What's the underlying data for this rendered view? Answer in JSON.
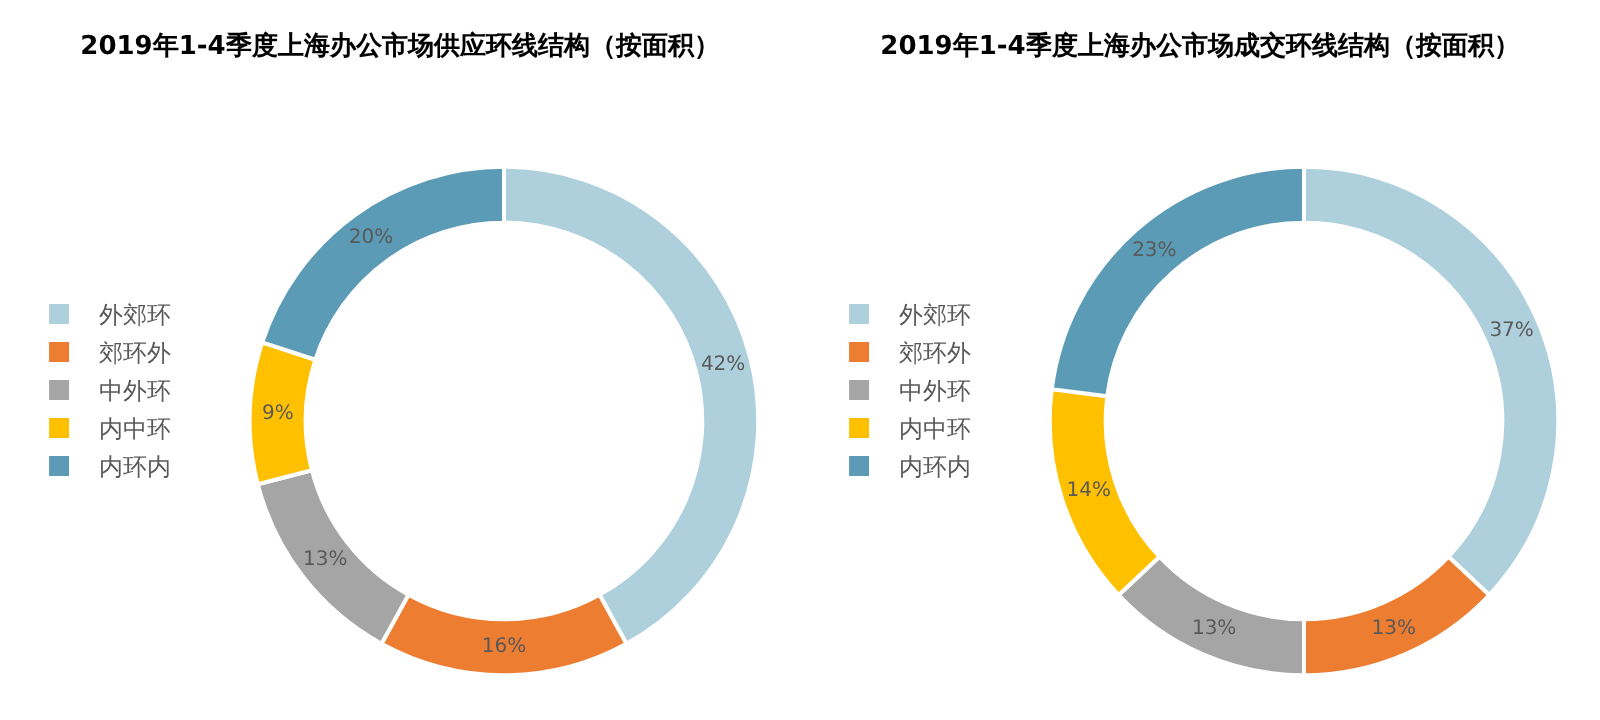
{
  "chart_data": [
    {
      "type": "donut",
      "title": "2019年1-4季度上海办公市场供应环线结构（按面积）",
      "categories": [
        "外郊环",
        "郊环外",
        "中外环",
        "内中环",
        "内环内"
      ],
      "values": [
        42,
        16,
        13,
        9,
        20
      ],
      "value_labels": [
        "42%",
        "16%",
        "13%",
        "9%",
        "20%"
      ],
      "colors": [
        "#aecfdc",
        "#ed7d31",
        "#a5a5a5",
        "#ffc000",
        "#5b9bb5"
      ],
      "legend": "left"
    },
    {
      "type": "donut",
      "title": "2019年1-4季度上海办公市场成交环线结构（按面积）",
      "categories": [
        "外郊环",
        "郊环外",
        "中外环",
        "内中环",
        "内环内"
      ],
      "values": [
        37,
        13,
        13,
        14,
        23
      ],
      "value_labels": [
        "37%",
        "13%",
        "13%",
        "14%",
        "23%"
      ],
      "colors": [
        "#aecfdc",
        "#ed7d31",
        "#a5a5a5",
        "#ffc000",
        "#5b9bb5"
      ],
      "legend": "left"
    }
  ]
}
